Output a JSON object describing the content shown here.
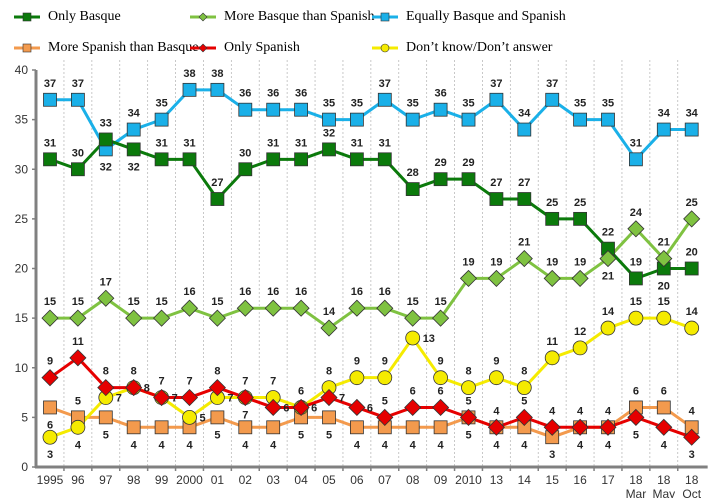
{
  "chart_data": {
    "type": "line",
    "title": "",
    "xlabel": "",
    "ylabel": "",
    "ylim": [
      0,
      40
    ],
    "yticks": [
      0,
      5,
      10,
      15,
      20,
      25,
      30,
      35,
      40
    ],
    "grid": "vertical dotted",
    "legend_position": "top",
    "categories": [
      "1995",
      "96",
      "97",
      "98",
      "99",
      "2000",
      "01",
      "02",
      "03",
      "04",
      "05",
      "06",
      "07",
      "08",
      "09",
      "2010",
      "13",
      "14",
      "15",
      "16",
      "17",
      "18 Mar",
      "18 May",
      "18 Oct"
    ],
    "category_labels": [
      [
        "1995"
      ],
      [
        "96"
      ],
      [
        "97"
      ],
      [
        "98"
      ],
      [
        "99"
      ],
      [
        "2000"
      ],
      [
        "01"
      ],
      [
        "02"
      ],
      [
        "03"
      ],
      [
        "04"
      ],
      [
        "05"
      ],
      [
        "06"
      ],
      [
        "07"
      ],
      [
        "08"
      ],
      [
        "09"
      ],
      [
        "2010"
      ],
      [
        "13"
      ],
      [
        "14"
      ],
      [
        "15"
      ],
      [
        "16"
      ],
      [
        "17"
      ],
      [
        "18",
        "Mar"
      ],
      [
        "18",
        "May"
      ],
      [
        "18",
        "Oct"
      ]
    ],
    "series": [
      {
        "name": "Only Basque",
        "color": "#0b7a0b",
        "marker": "square",
        "values": [
          31,
          30,
          33,
          32,
          31,
          31,
          27,
          30,
          31,
          31,
          32,
          31,
          31,
          28,
          29,
          29,
          27,
          27,
          25,
          25,
          22,
          19,
          20,
          20
        ],
        "label_pos": [
          "a",
          "a",
          "a",
          "b",
          "a",
          "a",
          "a",
          "a",
          "a",
          "a",
          "a",
          "a",
          "a",
          "a",
          "a",
          "a",
          "a",
          "a",
          "a",
          "a",
          "a",
          "a",
          "b",
          "a"
        ]
      },
      {
        "name": "More Basque than Spanish",
        "color": "#7fc241",
        "marker": "diamond",
        "values": [
          15,
          15,
          17,
          15,
          15,
          16,
          15,
          16,
          16,
          16,
          14,
          16,
          16,
          15,
          15,
          19,
          19,
          21,
          19,
          19,
          21,
          24,
          21,
          25
        ],
        "label_pos": [
          "a",
          "a",
          "a",
          "a",
          "a",
          "a",
          "a",
          "a",
          "a",
          "a",
          "a",
          "a",
          "a",
          "a",
          "a",
          "a",
          "a",
          "a",
          "a",
          "a",
          "b",
          "a",
          "a",
          "a"
        ]
      },
      {
        "name": "Equally Basque and Spanish",
        "color": "#1ab0e8",
        "marker": "square",
        "values": [
          37,
          37,
          32,
          34,
          35,
          38,
          38,
          36,
          36,
          36,
          35,
          35,
          37,
          35,
          36,
          35,
          37,
          34,
          37,
          35,
          35,
          31,
          34,
          34
        ],
        "label_pos": [
          "a",
          "a",
          "b",
          "a",
          "a",
          "a",
          "a",
          "a",
          "a",
          "a",
          "a",
          "a",
          "a",
          "a",
          "a",
          "a",
          "a",
          "a",
          "a",
          "a",
          "a",
          "a",
          "a",
          "a"
        ]
      },
      {
        "name": "More Spanish than Basque",
        "color": "#f39a4d",
        "marker": "square",
        "values": [
          6,
          5,
          5,
          4,
          4,
          4,
          5,
          4,
          4,
          5,
          5,
          4,
          4,
          4,
          4,
          5,
          4,
          4,
          3,
          4,
          4,
          6,
          6,
          4
        ],
        "label_pos": [
          "b",
          "a",
          "b",
          "b",
          "b",
          "b",
          "b",
          "b",
          "b",
          "b",
          "b",
          "b",
          "b",
          "b",
          "b",
          "b",
          "a",
          "b",
          "b",
          "a",
          "a",
          "a",
          "a",
          "a"
        ]
      },
      {
        "name": "Only Spanish",
        "color": "#e60000",
        "marker": "diamond",
        "values": [
          9,
          11,
          8,
          8,
          7,
          7,
          8,
          7,
          6,
          6,
          7,
          6,
          5,
          6,
          6,
          5,
          4,
          5,
          4,
          4,
          4,
          5,
          4,
          3
        ],
        "label_pos": [
          "a",
          "a",
          "a",
          "a",
          "a",
          "a",
          "a",
          "a",
          "r",
          "r",
          "r",
          "r",
          "a",
          "a",
          "a",
          "a",
          "b",
          "a",
          "a",
          "b",
          "b",
          "b",
          "b",
          "b"
        ]
      },
      {
        "name": "Don't know/Don't answer",
        "color": "#f5eb00",
        "marker": "circle",
        "values": [
          3,
          4,
          7,
          8,
          7,
          5,
          7,
          7,
          7,
          6,
          8,
          9,
          9,
          13,
          9,
          8,
          9,
          8,
          11,
          12,
          14,
          15,
          15,
          14
        ],
        "label_pos": [
          "b",
          "b",
          "r",
          "r",
          "r",
          "r",
          "r",
          "b",
          "a",
          "a",
          "a",
          "a",
          "a",
          "r",
          "a",
          "a",
          "a",
          "a",
          "a",
          "a",
          "a",
          "a",
          "a",
          "a"
        ]
      }
    ]
  },
  "legend": [
    {
      "label": "Only Basque"
    },
    {
      "label": "More Basque than Spanish"
    },
    {
      "label": "Equally Basque and Spanish"
    },
    {
      "label": "More Spanish than Basque"
    },
    {
      "label": "Only Spanish"
    },
    {
      "label": "Don’t know/Don’t answer"
    }
  ]
}
